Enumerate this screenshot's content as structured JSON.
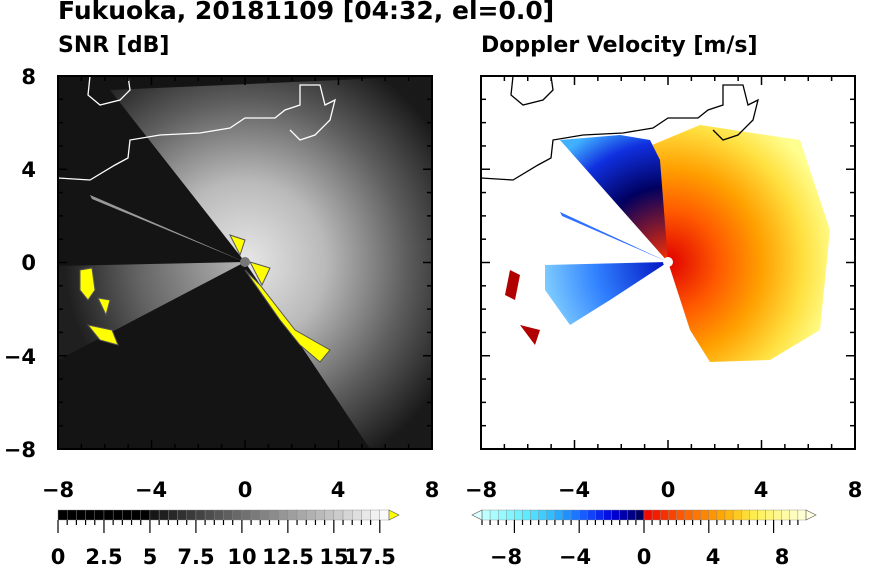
{
  "title": "Fukuoka, 20181109 [04:32, el=0.0]",
  "panels": [
    {
      "title": "SNR [dB]",
      "xticks": [
        "−8",
        "−4",
        "0",
        "4",
        "8"
      ],
      "yticks": [
        "8",
        "4",
        "0",
        "−4",
        "−8"
      ]
    },
    {
      "title": "Doppler Velocity [m/s]",
      "xticks": [
        "−8",
        "−4",
        "0",
        "4",
        "8"
      ]
    }
  ],
  "chart_data": [
    {
      "type": "heatmap",
      "title": "SNR [dB]",
      "xlim": [
        -8,
        8
      ],
      "ylim": [
        -8,
        8
      ],
      "xticks": [
        -8,
        -4,
        0,
        4,
        8
      ],
      "yticks": [
        -8,
        -4,
        0,
        4,
        8
      ],
      "colorbar": {
        "min": 0,
        "max": 18,
        "step": 0.5,
        "labels": [
          "0",
          "2.5",
          "5",
          "7.5",
          "10",
          "12.5",
          "15",
          "17.5"
        ],
        "over_color": "#ffff00",
        "colormap": "black-to-white"
      }
    },
    {
      "type": "heatmap",
      "title": "Doppler Velocity [m/s]",
      "xlim": [
        -8,
        8
      ],
      "ylim": [
        -8,
        8
      ],
      "xticks": [
        -8,
        -4,
        0,
        4,
        8
      ],
      "colorbar": {
        "min": -10,
        "max": 10,
        "step": 0.5,
        "labels": [
          "−8",
          "−4",
          "0",
          "4",
          "8"
        ],
        "colormap": "cyan-blue-navy | red-orange-yellow"
      }
    }
  ]
}
